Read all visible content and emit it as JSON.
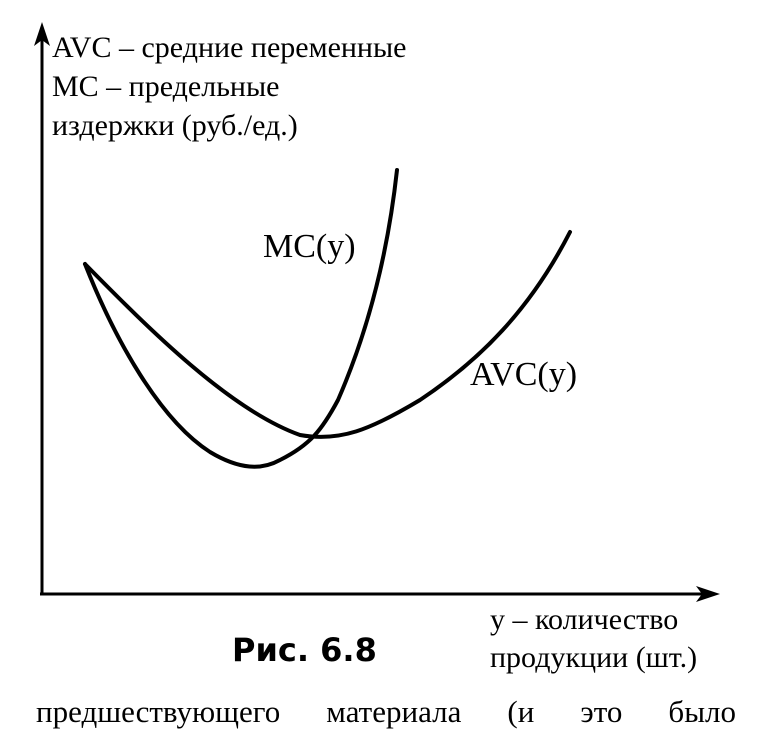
{
  "chart_data": {
    "type": "line",
    "ylabel_lines": [
      "AVC – средние переменные",
      "MC – предельные",
      "издержки (руб./ед.)"
    ],
    "xlabel_lines": [
      "y – количество",
      "продукции (шт.)"
    ],
    "series": [
      {
        "name": "MC(y)",
        "shape": "U-shaped, steep rise, crosses AVC at AVC minimum"
      },
      {
        "name": "AVC(y)",
        "shape": "U-shaped, gentle"
      }
    ],
    "grid": false,
    "ticks": false
  },
  "caption": "Рис. 6.8",
  "body_text": "предшествующего материала (и это было",
  "colors": {
    "ink": "#000000",
    "background": "#ffffff"
  }
}
